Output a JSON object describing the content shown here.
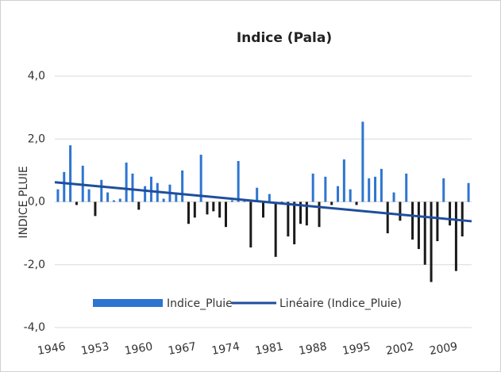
{
  "chart_data": {
    "type": "bar",
    "title": "Indice (Pala)",
    "y_label": "INDICE PLUIE",
    "x": [
      1946,
      1947,
      1948,
      1949,
      1950,
      1951,
      1952,
      1953,
      1954,
      1955,
      1956,
      1957,
      1958,
      1959,
      1960,
      1961,
      1962,
      1963,
      1964,
      1965,
      1966,
      1967,
      1968,
      1969,
      1970,
      1971,
      1972,
      1973,
      1974,
      1975,
      1976,
      1977,
      1978,
      1979,
      1980,
      1981,
      1982,
      1983,
      1984,
      1985,
      1986,
      1987,
      1988,
      1989,
      1990,
      1991,
      1992,
      1993,
      1994,
      1995,
      1996,
      1997,
      1998,
      1999,
      2000,
      2001,
      2002,
      2003,
      2004,
      2005,
      2006,
      2007,
      2008,
      2009,
      2010,
      2011,
      2012
    ],
    "xlim": [
      1945.5,
      2012.5
    ],
    "xticks": [
      1946,
      1953,
      1960,
      1967,
      1974,
      1981,
      1988,
      1995,
      2002,
      2009
    ],
    "ylim": [
      -4,
      4
    ],
    "yticks": [
      {
        "value": 4,
        "label": "4,0"
      },
      {
        "value": 2,
        "label": "2,0"
      },
      {
        "value": 0,
        "label": "0,0"
      },
      {
        "value": -2,
        "label": "-2,0"
      },
      {
        "value": -4,
        "label": "-4,0"
      }
    ],
    "grid": true,
    "series": [
      {
        "name": "Indice_Pluie",
        "color": "#2e75d0",
        "negative_color": "#1a1a1a",
        "values": [
          0.4,
          0.95,
          1.8,
          -0.1,
          1.15,
          0.4,
          -0.45,
          0.7,
          0.3,
          0.05,
          0.1,
          1.25,
          0.9,
          -0.25,
          0.5,
          0.8,
          0.6,
          0.1,
          0.55,
          0.3,
          1.0,
          -0.7,
          -0.5,
          1.5,
          -0.4,
          -0.3,
          -0.5,
          -0.8,
          0.05,
          1.3,
          0.05,
          -1.45,
          0.45,
          -0.5,
          0.25,
          -1.75,
          -0.05,
          -1.1,
          -1.35,
          -0.7,
          -0.75,
          0.9,
          -0.8,
          0.8,
          -0.1,
          0.5,
          1.35,
          0.4,
          -0.1,
          2.55,
          0.75,
          0.8,
          1.05,
          -1.0,
          0.3,
          -0.6,
          0.9,
          -1.2,
          -1.5,
          -2.0,
          -2.55,
          -1.25,
          0.75,
          -0.75,
          -2.2,
          -1.1,
          0.6
        ]
      }
    ],
    "trend": {
      "name": "Linéaire (Indice_Pluie)",
      "color": "#1f4e9c"
    }
  }
}
